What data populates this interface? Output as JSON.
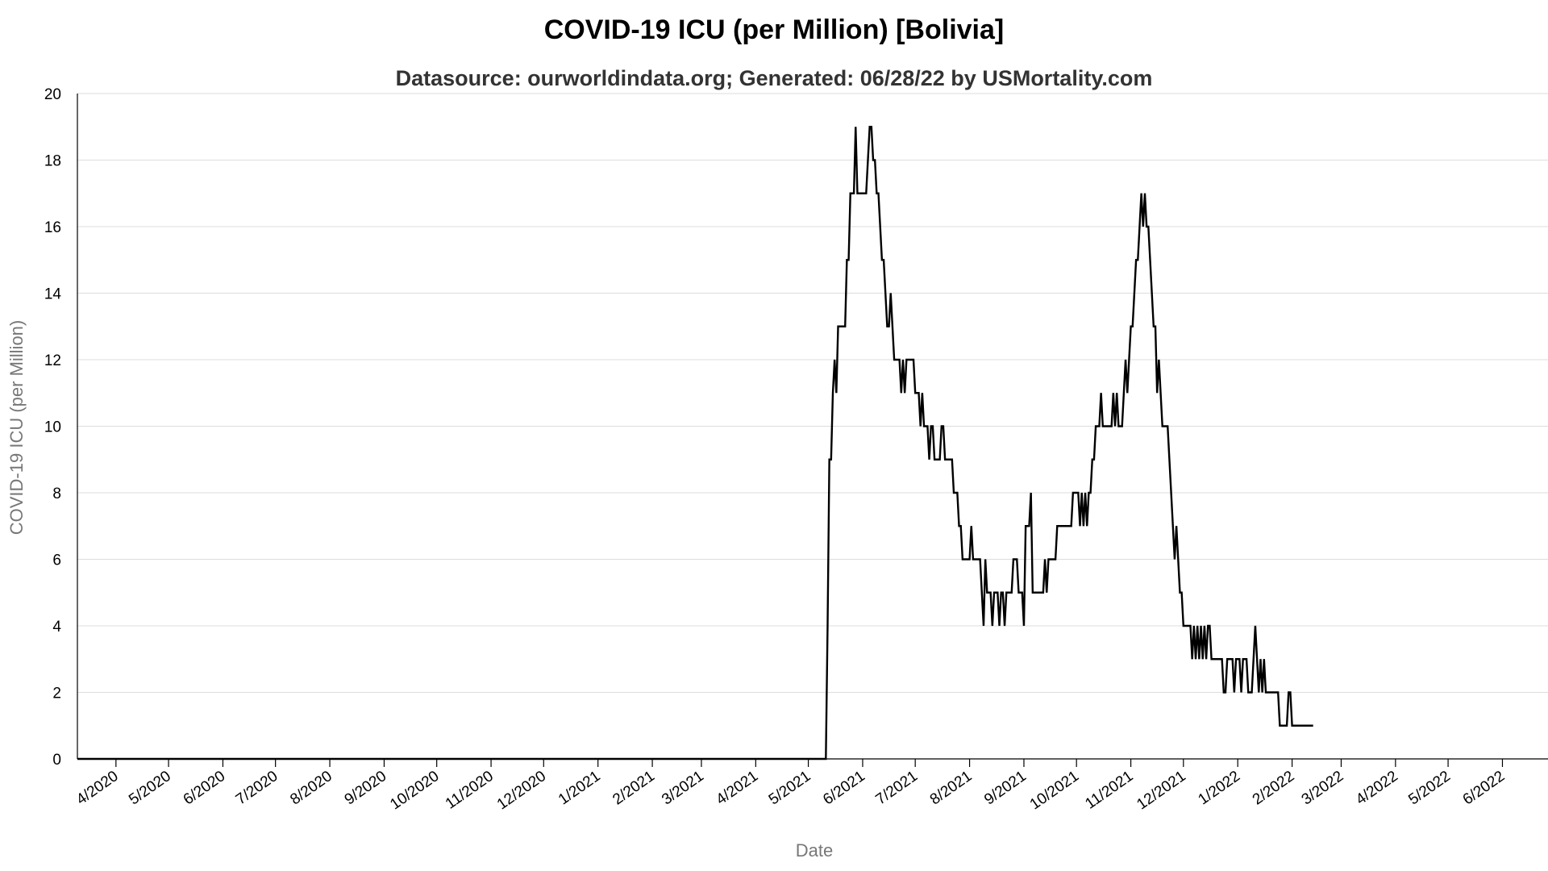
{
  "chart_data": {
    "type": "line",
    "title": "COVID-19 ICU (per Million) [Bolivia]",
    "subtitle": "Datasource: ourworldindata.org; Generated: 06/28/22 by USMortality.com",
    "xlabel": "Date",
    "ylabel": "COVID-19 ICU (per Million)",
    "ylim": [
      0,
      20
    ],
    "yticks": [
      0,
      2,
      4,
      6,
      8,
      10,
      12,
      14,
      16,
      18,
      20
    ],
    "xlim": [
      "2020-03-10",
      "2022-06-27"
    ],
    "xticks": [
      {
        "date": "2020-04-01",
        "label": "4/2020"
      },
      {
        "date": "2020-05-01",
        "label": "5/2020"
      },
      {
        "date": "2020-06-01",
        "label": "6/2020"
      },
      {
        "date": "2020-07-01",
        "label": "7/2020"
      },
      {
        "date": "2020-08-01",
        "label": "8/2020"
      },
      {
        "date": "2020-09-01",
        "label": "9/2020"
      },
      {
        "date": "2020-10-01",
        "label": "10/2020"
      },
      {
        "date": "2020-11-01",
        "label": "11/2020"
      },
      {
        "date": "2020-12-01",
        "label": "12/2020"
      },
      {
        "date": "2021-01-01",
        "label": "1/2021"
      },
      {
        "date": "2021-02-01",
        "label": "2/2021"
      },
      {
        "date": "2021-03-01",
        "label": "3/2021"
      },
      {
        "date": "2021-04-01",
        "label": "4/2021"
      },
      {
        "date": "2021-05-01",
        "label": "5/2021"
      },
      {
        "date": "2021-06-01",
        "label": "6/2021"
      },
      {
        "date": "2021-07-01",
        "label": "7/2021"
      },
      {
        "date": "2021-08-01",
        "label": "8/2021"
      },
      {
        "date": "2021-09-01",
        "label": "9/2021"
      },
      {
        "date": "2021-10-01",
        "label": "10/2021"
      },
      {
        "date": "2021-11-01",
        "label": "11/2021"
      },
      {
        "date": "2021-12-01",
        "label": "12/2021"
      },
      {
        "date": "2022-01-01",
        "label": "1/2022"
      },
      {
        "date": "2022-02-01",
        "label": "2/2022"
      },
      {
        "date": "2022-03-01",
        "label": "3/2022"
      },
      {
        "date": "2022-04-01",
        "label": "4/2022"
      },
      {
        "date": "2022-05-01",
        "label": "5/2022"
      },
      {
        "date": "2022-06-01",
        "label": "6/2022"
      }
    ],
    "grid": true,
    "series": [
      {
        "color": "#000000",
        "points": [
          [
            "2020-03-10",
            0
          ],
          [
            "2021-05-11",
            0
          ],
          [
            "2021-05-12",
            4
          ],
          [
            "2021-05-13",
            9
          ],
          [
            "2021-05-14",
            9
          ],
          [
            "2021-05-15",
            11
          ],
          [
            "2021-05-16",
            12
          ],
          [
            "2021-05-17",
            11
          ],
          [
            "2021-05-18",
            13
          ],
          [
            "2021-05-22",
            13
          ],
          [
            "2021-05-23",
            15
          ],
          [
            "2021-05-24",
            15
          ],
          [
            "2021-05-25",
            17
          ],
          [
            "2021-05-27",
            17
          ],
          [
            "2021-05-28",
            19
          ],
          [
            "2021-05-29",
            17
          ],
          [
            "2021-06-03",
            17
          ],
          [
            "2021-06-04",
            18
          ],
          [
            "2021-06-05",
            19
          ],
          [
            "2021-06-06",
            19
          ],
          [
            "2021-06-07",
            18
          ],
          [
            "2021-06-08",
            18
          ],
          [
            "2021-06-09",
            17
          ],
          [
            "2021-06-10",
            17
          ],
          [
            "2021-06-11",
            16
          ],
          [
            "2021-06-12",
            15
          ],
          [
            "2021-06-13",
            15
          ],
          [
            "2021-06-14",
            14
          ],
          [
            "2021-06-15",
            13
          ],
          [
            "2021-06-16",
            13
          ],
          [
            "2021-06-17",
            14
          ],
          [
            "2021-06-18",
            13
          ],
          [
            "2021-06-19",
            12
          ],
          [
            "2021-06-22",
            12
          ],
          [
            "2021-06-23",
            11
          ],
          [
            "2021-06-24",
            12
          ],
          [
            "2021-06-25",
            11
          ],
          [
            "2021-06-26",
            12
          ],
          [
            "2021-06-30",
            12
          ],
          [
            "2021-07-01",
            11
          ],
          [
            "2021-07-03",
            11
          ],
          [
            "2021-07-04",
            10
          ],
          [
            "2021-07-05",
            11
          ],
          [
            "2021-07-06",
            10
          ],
          [
            "2021-07-08",
            10
          ],
          [
            "2021-07-09",
            9
          ],
          [
            "2021-07-10",
            10
          ],
          [
            "2021-07-11",
            10
          ],
          [
            "2021-07-12",
            9
          ],
          [
            "2021-07-15",
            9
          ],
          [
            "2021-07-16",
            10
          ],
          [
            "2021-07-17",
            10
          ],
          [
            "2021-07-18",
            9
          ],
          [
            "2021-07-22",
            9
          ],
          [
            "2021-07-23",
            8
          ],
          [
            "2021-07-25",
            8
          ],
          [
            "2021-07-26",
            7
          ],
          [
            "2021-07-27",
            7
          ],
          [
            "2021-07-28",
            6
          ],
          [
            "2021-08-01",
            6
          ],
          [
            "2021-08-02",
            7
          ],
          [
            "2021-08-03",
            6
          ],
          [
            "2021-08-07",
            6
          ],
          [
            "2021-08-08",
            5
          ],
          [
            "2021-08-09",
            4
          ],
          [
            "2021-08-10",
            6
          ],
          [
            "2021-08-11",
            5
          ],
          [
            "2021-08-13",
            5
          ],
          [
            "2021-08-14",
            4
          ],
          [
            "2021-08-15",
            5
          ],
          [
            "2021-08-17",
            5
          ],
          [
            "2021-08-18",
            4
          ],
          [
            "2021-08-19",
            5
          ],
          [
            "2021-08-20",
            5
          ],
          [
            "2021-08-21",
            4
          ],
          [
            "2021-08-22",
            5
          ],
          [
            "2021-08-25",
            5
          ],
          [
            "2021-08-26",
            6
          ],
          [
            "2021-08-28",
            6
          ],
          [
            "2021-08-29",
            5
          ],
          [
            "2021-08-31",
            5
          ],
          [
            "2021-09-01",
            4
          ],
          [
            "2021-09-02",
            7
          ],
          [
            "2021-09-04",
            7
          ],
          [
            "2021-09-05",
            8
          ],
          [
            "2021-09-06",
            5
          ],
          [
            "2021-09-12",
            5
          ],
          [
            "2021-09-13",
            6
          ],
          [
            "2021-09-14",
            5
          ],
          [
            "2021-09-15",
            6
          ],
          [
            "2021-09-19",
            6
          ],
          [
            "2021-09-20",
            7
          ],
          [
            "2021-09-28",
            7
          ],
          [
            "2021-09-29",
            8
          ],
          [
            "2021-10-02",
            8
          ],
          [
            "2021-10-03",
            7
          ],
          [
            "2021-10-04",
            8
          ],
          [
            "2021-10-05",
            7
          ],
          [
            "2021-10-06",
            8
          ],
          [
            "2021-10-07",
            7
          ],
          [
            "2021-10-08",
            8
          ],
          [
            "2021-10-09",
            8
          ],
          [
            "2021-10-10",
            9
          ],
          [
            "2021-10-11",
            9
          ],
          [
            "2021-10-12",
            10
          ],
          [
            "2021-10-14",
            10
          ],
          [
            "2021-10-15",
            11
          ],
          [
            "2021-10-16",
            10
          ],
          [
            "2021-10-21",
            10
          ],
          [
            "2021-10-22",
            11
          ],
          [
            "2021-10-23",
            10
          ],
          [
            "2021-10-24",
            11
          ],
          [
            "2021-10-25",
            10
          ],
          [
            "2021-10-27",
            10
          ],
          [
            "2021-10-28",
            11
          ],
          [
            "2021-10-29",
            12
          ],
          [
            "2021-10-30",
            11
          ],
          [
            "2021-10-31",
            12
          ],
          [
            "2021-11-01",
            13
          ],
          [
            "2021-11-02",
            13
          ],
          [
            "2021-11-03",
            14
          ],
          [
            "2021-11-04",
            15
          ],
          [
            "2021-11-05",
            15
          ],
          [
            "2021-11-06",
            16
          ],
          [
            "2021-11-07",
            17
          ],
          [
            "2021-11-08",
            16
          ],
          [
            "2021-11-09",
            17
          ],
          [
            "2021-11-10",
            16
          ],
          [
            "2021-11-11",
            16
          ],
          [
            "2021-11-12",
            15
          ],
          [
            "2021-11-13",
            14
          ],
          [
            "2021-11-14",
            13
          ],
          [
            "2021-11-15",
            13
          ],
          [
            "2021-11-16",
            11
          ],
          [
            "2021-11-17",
            12
          ],
          [
            "2021-11-18",
            11
          ],
          [
            "2021-11-19",
            10
          ],
          [
            "2021-11-22",
            10
          ],
          [
            "2021-11-23",
            9
          ],
          [
            "2021-11-24",
            8
          ],
          [
            "2021-11-25",
            7
          ],
          [
            "2021-11-26",
            6
          ],
          [
            "2021-11-27",
            7
          ],
          [
            "2021-11-28",
            6
          ],
          [
            "2021-11-29",
            5
          ],
          [
            "2021-11-30",
            5
          ],
          [
            "2021-12-01",
            4
          ],
          [
            "2021-12-05",
            4
          ],
          [
            "2021-12-06",
            3
          ],
          [
            "2021-12-07",
            4
          ],
          [
            "2021-12-08",
            3
          ],
          [
            "2021-12-09",
            4
          ],
          [
            "2021-12-10",
            3
          ],
          [
            "2021-12-11",
            4
          ],
          [
            "2021-12-12",
            3
          ],
          [
            "2021-12-13",
            4
          ],
          [
            "2021-12-14",
            3
          ],
          [
            "2021-12-15",
            4
          ],
          [
            "2021-12-16",
            4
          ],
          [
            "2021-12-17",
            3
          ],
          [
            "2021-12-23",
            3
          ],
          [
            "2021-12-24",
            2
          ],
          [
            "2021-12-25",
            2
          ],
          [
            "2021-12-26",
            3
          ],
          [
            "2021-12-29",
            3
          ],
          [
            "2021-12-30",
            2
          ],
          [
            "2021-12-31",
            3
          ],
          [
            "2022-01-02",
            3
          ],
          [
            "2022-01-03",
            2
          ],
          [
            "2022-01-04",
            3
          ],
          [
            "2022-01-06",
            3
          ],
          [
            "2022-01-07",
            2
          ],
          [
            "2022-01-09",
            2
          ],
          [
            "2022-01-10",
            3
          ],
          [
            "2022-01-11",
            4
          ],
          [
            "2022-01-12",
            3
          ],
          [
            "2022-01-13",
            2
          ],
          [
            "2022-01-14",
            3
          ],
          [
            "2022-01-15",
            2
          ],
          [
            "2022-01-16",
            3
          ],
          [
            "2022-01-17",
            2
          ],
          [
            "2022-01-18",
            2
          ],
          [
            "2022-01-24",
            2
          ],
          [
            "2022-01-25",
            1
          ],
          [
            "2022-01-29",
            1
          ],
          [
            "2022-01-30",
            2
          ],
          [
            "2022-01-31",
            2
          ],
          [
            "2022-02-01",
            1
          ],
          [
            "2022-02-13",
            1
          ]
        ]
      }
    ]
  }
}
